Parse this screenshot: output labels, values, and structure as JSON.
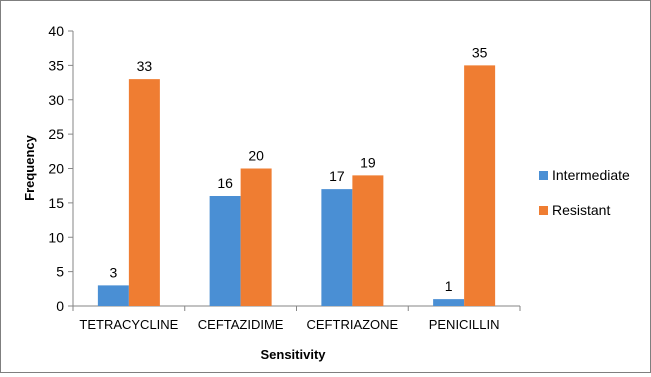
{
  "chart_data": {
    "type": "bar",
    "categories": [
      "TETRACYCLINE",
      "CEFTAZIDIME",
      "CEFTRIAZONE",
      "PENICILLIN"
    ],
    "series": [
      {
        "name": "Intermediate",
        "color": "#4a8fd4",
        "values": [
          3,
          16,
          17,
          1
        ]
      },
      {
        "name": "Resistant",
        "color": "#ef7d32",
        "values": [
          33,
          20,
          19,
          35
        ]
      }
    ],
    "xlabel": "Sensitivity",
    "ylabel": "Frequency",
    "ylim": [
      0,
      40
    ],
    "yticks": [
      0,
      5,
      10,
      15,
      20,
      25,
      30,
      35,
      40
    ],
    "grid": false,
    "legend_position": "right",
    "data_labels": true
  }
}
